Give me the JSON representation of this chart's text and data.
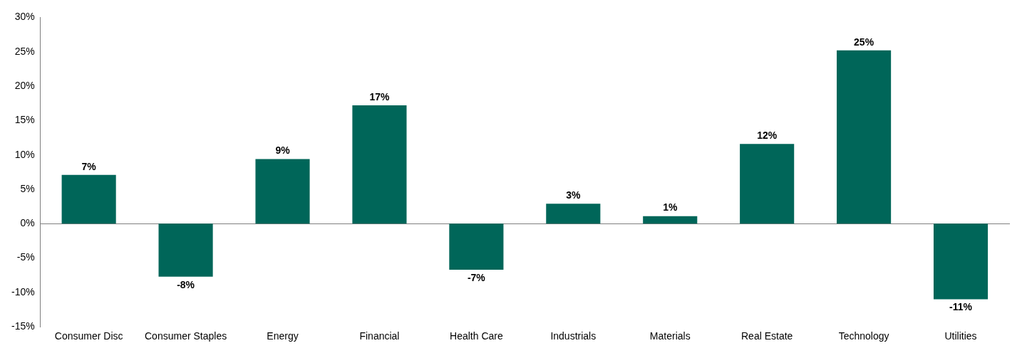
{
  "chart_data": {
    "type": "bar",
    "categories": [
      "Consumer Disc",
      "Consumer Staples",
      "Energy",
      "Financial",
      "Health Care",
      "Industrials",
      "Materials",
      "Real Estate",
      "Technology",
      "Utilities"
    ],
    "values": [
      7.1,
      -7.7,
      9.4,
      17.2,
      -6.7,
      2.9,
      1.1,
      11.6,
      25.2,
      -11
    ],
    "value_labels": [
      "7%",
      "-8%",
      "9%",
      "17%",
      "-7%",
      "3%",
      "1%",
      "12%",
      "25%",
      "-11%"
    ],
    "color": "#006659",
    "ylim": [
      -15,
      30
    ],
    "yticks": [
      {
        "value": -15,
        "label": "-15%"
      },
      {
        "value": -10,
        "label": "-10%"
      },
      {
        "value": -5,
        "label": "-5%"
      },
      {
        "value": 0,
        "label": "0%"
      },
      {
        "value": 5,
        "label": "5%"
      },
      {
        "value": 10,
        "label": "10%"
      },
      {
        "value": 15,
        "label": "15%"
      },
      {
        "value": 20,
        "label": "20%"
      },
      {
        "value": 25,
        "label": "25%"
      },
      {
        "value": 30,
        "label": "30%"
      }
    ],
    "legend": false
  }
}
